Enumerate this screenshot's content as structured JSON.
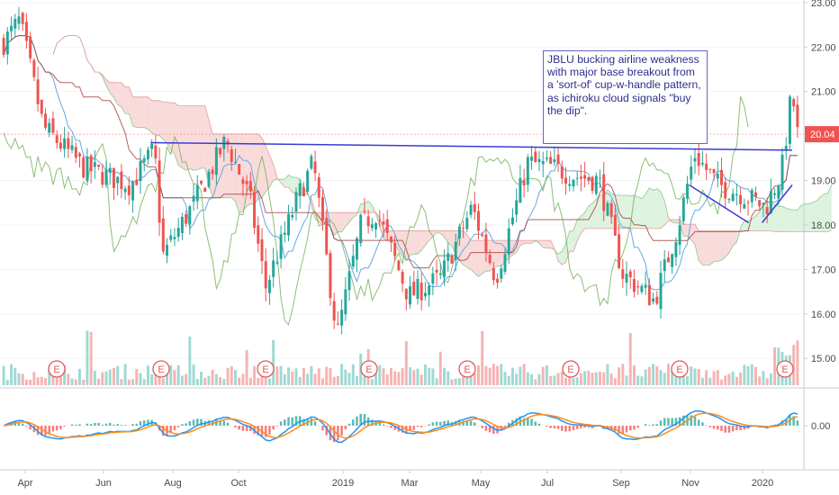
{
  "chart_data": [
    {
      "type": "candlestick",
      "xlabel": "",
      "ylabel": "",
      "title": "",
      "x_ticks": [
        "Apr",
        "Jun",
        "Aug",
        "Oct",
        "2019",
        "Mar",
        "May",
        "Jul",
        "Sep",
        "Nov",
        "2020"
      ],
      "y_ticks": [
        "23.00",
        "22.00",
        "21.00",
        "20.04",
        "19.00",
        "18.00",
        "17.00",
        "16.00",
        "15.00"
      ],
      "ylim": [
        14.6,
        23.3
      ],
      "last_price": "20.04",
      "earnings_markers": [
        "E",
        "E",
        "E",
        "E",
        "E",
        "E",
        "E",
        "E"
      ],
      "annotation": "JBLU bucking airline weakness with major base breakout from a 'sort-of' cup-w-handle pattern, as ichiroku cloud signals \"buy the dip\".",
      "price_path_keypoints": [
        {
          "t": 0.0,
          "v": 22.1
        },
        {
          "t": 0.02,
          "v": 22.6
        },
        {
          "t": 0.05,
          "v": 20.2
        },
        {
          "t": 0.1,
          "v": 19.3
        },
        {
          "t": 0.16,
          "v": 18.9
        },
        {
          "t": 0.19,
          "v": 19.7
        },
        {
          "t": 0.2,
          "v": 17.3
        },
        {
          "t": 0.24,
          "v": 18.5
        },
        {
          "t": 0.28,
          "v": 19.9
        },
        {
          "t": 0.31,
          "v": 18.6
        },
        {
          "t": 0.33,
          "v": 16.6
        },
        {
          "t": 0.37,
          "v": 18.6
        },
        {
          "t": 0.39,
          "v": 19.4
        },
        {
          "t": 0.42,
          "v": 15.5
        },
        {
          "t": 0.45,
          "v": 18.0
        },
        {
          "t": 0.47,
          "v": 18.3
        },
        {
          "t": 0.51,
          "v": 16.4
        },
        {
          "t": 0.55,
          "v": 16.8
        },
        {
          "t": 0.59,
          "v": 18.4
        },
        {
          "t": 0.62,
          "v": 16.8
        },
        {
          "t": 0.66,
          "v": 19.4
        },
        {
          "t": 0.69,
          "v": 19.3
        },
        {
          "t": 0.72,
          "v": 19.1
        },
        {
          "t": 0.75,
          "v": 19.0
        },
        {
          "t": 0.78,
          "v": 16.9
        },
        {
          "t": 0.82,
          "v": 16.3
        },
        {
          "t": 0.85,
          "v": 18.0
        },
        {
          "t": 0.87,
          "v": 19.6
        },
        {
          "t": 0.9,
          "v": 18.9
        },
        {
          "t": 0.93,
          "v": 18.7
        },
        {
          "t": 0.96,
          "v": 18.4
        },
        {
          "t": 0.98,
          "v": 19.2
        },
        {
          "t": 0.993,
          "v": 21.0
        },
        {
          "t": 1.0,
          "v": 20.04
        }
      ],
      "resistance_line": {
        "from": [
          0.19,
          19.85
        ],
        "to": [
          1.0,
          19.68
        ]
      },
      "handle_trendlines": [
        {
          "from": [
            0.87,
            18.9
          ],
          "to": [
            0.945,
            18.05
          ]
        },
        {
          "from": [
            0.962,
            18.05
          ],
          "to": [
            1.0,
            18.9
          ]
        }
      ]
    },
    {
      "type": "macd",
      "y_ticks": [
        "0.00"
      ]
    }
  ],
  "colors": {
    "up": "#26a69a",
    "down": "#ef5350",
    "resistance": "#3b3bd4",
    "cloud_bull": "#d7f1d9",
    "cloud_bear": "#f8d3d3",
    "macd_line": "#2196f3",
    "signal_line": "#ff8c1a",
    "price_label_bg": "#ef5350",
    "earnings": "#e35a5a"
  }
}
